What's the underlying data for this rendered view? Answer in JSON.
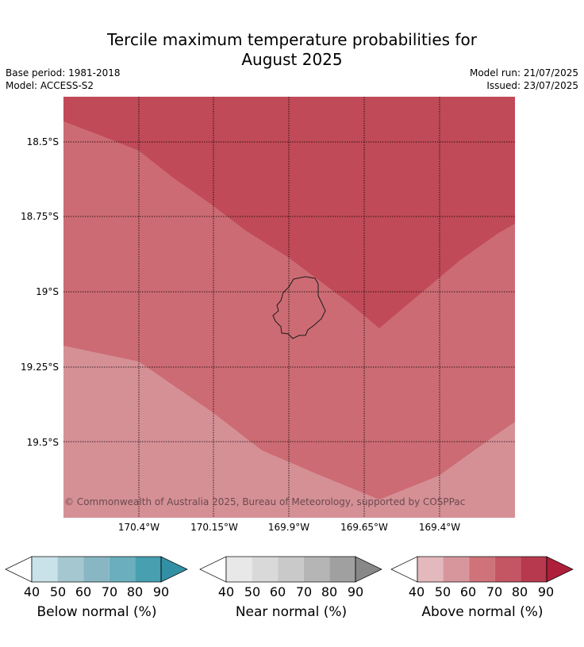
{
  "title_line1": "Tercile maximum temperature probabilities for",
  "title_line2": "August 2025",
  "base_period": "Base period: 1981-2018",
  "model": "Model: ACCESS-S2",
  "model_run": "Model run: 21/07/2025",
  "issued": "Issued: 23/07/2025",
  "copyright": "© Commonwealth of Australia 2025, Bureau of Meteorology, supported by COSPPac",
  "lat_ticks": [
    "18.5°S",
    "18.75°S",
    "19°S",
    "19.25°S",
    "19.5°S"
  ],
  "lon_ticks": [
    "170.4°W",
    "170.15°W",
    "169.9°W",
    "169.65°W",
    "169.4°W"
  ],
  "map_colors": {
    "above_90": "#c04a57",
    "above_70": "#cc6b73",
    "above_50": "#d59096",
    "coastline": "#1a1a1a"
  },
  "colorbars": [
    {
      "name": "below-normal",
      "label": "Below normal (%)",
      "ticks": [
        "40",
        "50",
        "60",
        "70",
        "80",
        "90"
      ],
      "colors": [
        "#ffffff",
        "#c9e1e8",
        "#a5c8d0",
        "#88b7c3",
        "#6bafbe",
        "#479fb0",
        "#3290a5"
      ]
    },
    {
      "name": "near-normal",
      "label": "Near normal (%)",
      "ticks": [
        "40",
        "50",
        "60",
        "70",
        "80",
        "90"
      ],
      "colors": [
        "#ffffff",
        "#e8e8e8",
        "#d9d9d9",
        "#c9c9c9",
        "#b5b5b5",
        "#a0a0a0",
        "#888888"
      ]
    },
    {
      "name": "above-normal",
      "label": "Above normal (%)",
      "ticks": [
        "40",
        "50",
        "60",
        "70",
        "80",
        "90"
      ],
      "colors": [
        "#ffffff",
        "#e3b9bd",
        "#d6969c",
        "#cf7279",
        "#c45562",
        "#b7394d",
        "#ad1f3a"
      ]
    }
  ]
}
